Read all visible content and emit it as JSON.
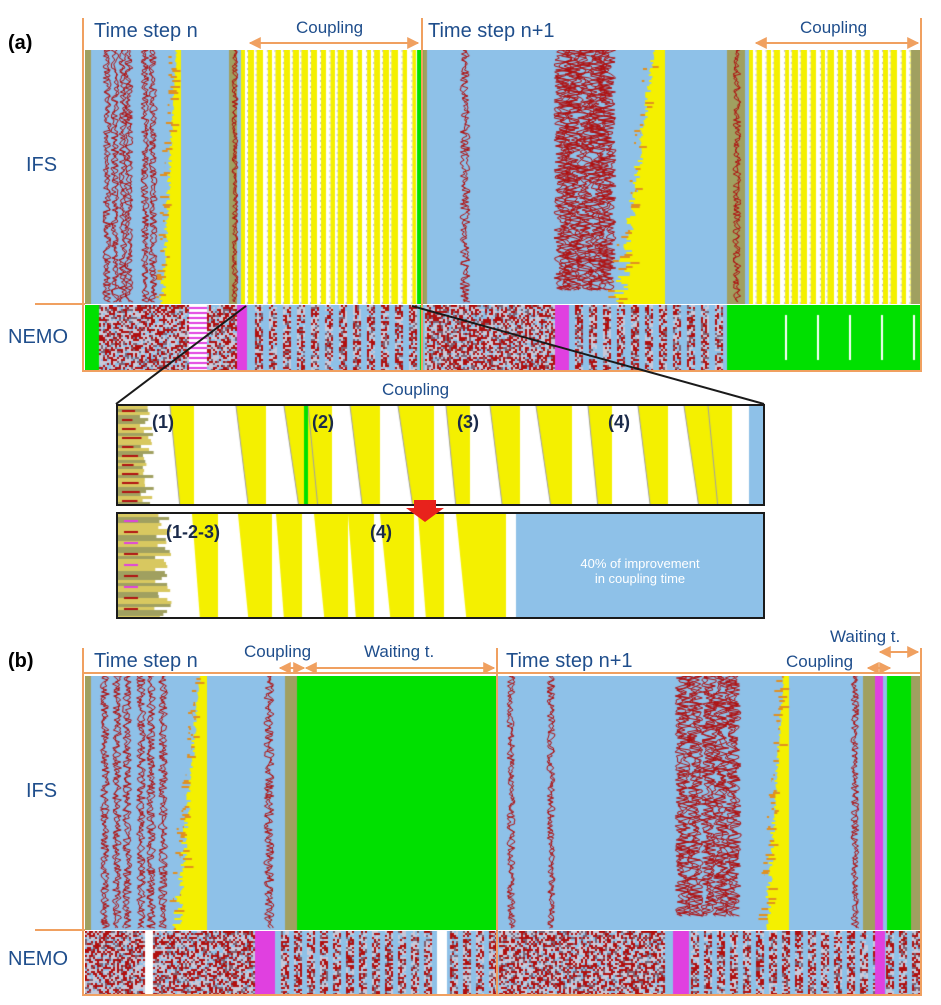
{
  "panel_a": {
    "label": "(a)",
    "row_ifs": "IFS",
    "row_nemo": "NEMO",
    "step_n": "Time  step n",
    "step_n1": "Time  step  n+1",
    "coupling_1": "Coupling",
    "coupling_2": "Coupling",
    "zoom_title": "Coupling",
    "zoom_before": {
      "phases": [
        "(1)",
        "(2)",
        "(3)",
        "(4)"
      ]
    },
    "zoom_after": {
      "phases": [
        "(1-2-3)",
        "(4)"
      ],
      "note_line1": "40% of improvement",
      "note_line2": "in coupling time"
    }
  },
  "panel_b": {
    "label": "(b)",
    "row_ifs": "IFS",
    "row_nemo": "NEMO",
    "step_n": "Time step  n",
    "step_n1": "Time step  n+1",
    "coupling_1": "Coupling",
    "waiting_1": "Waiting t.",
    "coupling_2": "Coupling",
    "waiting_2": "Waiting t."
  },
  "colors": {
    "ice": "#8ec1e8",
    "red": "#b01010",
    "yellow": "#f4f000",
    "green": "#00e000",
    "olive": "#a0a060",
    "magenta": "#e040e0",
    "white": "#ffffff",
    "orange": "#f0a060",
    "frame": "#1a1a1a"
  }
}
